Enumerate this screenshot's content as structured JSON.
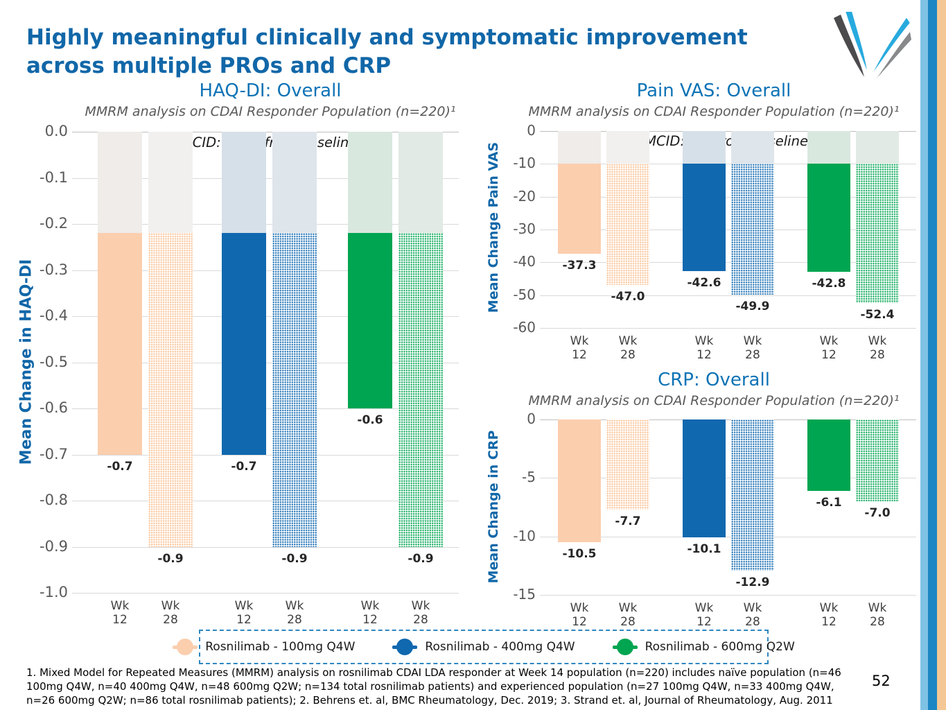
{
  "slide": {
    "title_line1": "Highly meaningful clinically and symptomatic improvement",
    "title_line2": "across multiple PROs and CRP",
    "page_number": "52",
    "footnote": "1. Mixed Model for Repeated Measures (MMRM) analysis on rosnilimab CDAI LDA responder at Week 14 population (n=220) includes naïve population (n=46 100mg Q4W, n=40 400mg Q4W, n=48 600mg Q2W; n=134 total rosnilimab patients) and experienced population (n=27 100mg Q4W, n=33 400mg Q4W, n=26 600mg Q2W; n=86 total rosnilimab patients); 2. Behrens et. al, BMC Rheumatology, Dec. 2019; 3. Strand et. al, Journal of Rheumatology, Aug. 2011",
    "accent_blue": "#1167a8",
    "stripe_colors": [
      "#7fc2e4",
      "#1b86c3",
      "#f4c795"
    ]
  },
  "dose_styles": {
    "100": {
      "solid": "#fbceae",
      "cap": "#efece9",
      "cap_pattern": "#f2f0ee",
      "pattern_class": "pat-100"
    },
    "400": {
      "solid": "#1068af",
      "cap": "#d6e0e9",
      "cap_pattern": "#dee5eb",
      "pattern_class": "pat-400"
    },
    "600": {
      "solid": "#00a551",
      "cap": "#d9e8df",
      "cap_pattern": "#e1eae4",
      "pattern_class": "pat-600"
    }
  },
  "legend": {
    "items": [
      {
        "label": "Rosnilimab - 100mg Q4W",
        "dose": "100"
      },
      {
        "label": "Rosnilimab - 400mg Q4W",
        "dose": "400"
      },
      {
        "label": "Rosnilimab - 600mg Q2W",
        "dose": "600"
      }
    ]
  },
  "chart_data": [
    {
      "id": "haqdi",
      "type": "bar",
      "title": "HAQ-DI: Overall",
      "subtitle": "MMRM analysis on CDAI Responder Population (n=220)¹",
      "annotation": "MCID: -0.22 from baseline²",
      "ylabel": "Mean Change in HAQ-DI",
      "ylim": [
        0,
        -1.0
      ],
      "mcid": -0.22,
      "grid": true,
      "ytick_labels": [
        "0.0",
        "-0.1",
        "-0.2",
        "-0.3",
        "-0.4",
        "-0.5",
        "-0.6",
        "-0.7",
        "-0.8",
        "-0.9",
        "-1.0"
      ],
      "ytick_values": [
        0,
        -0.1,
        -0.2,
        -0.3,
        -0.4,
        -0.5,
        -0.6,
        -0.7,
        -0.8,
        -0.9,
        -1.0
      ],
      "timepoints": [
        "Wk 12",
        "Wk 28"
      ],
      "series": [
        {
          "name": "Rosnilimab - 100mg Q4W",
          "dose": "100",
          "values": [
            -0.7,
            -0.9
          ],
          "labels": [
            "-0.7",
            "-0.9"
          ]
        },
        {
          "name": "Rosnilimab - 400mg Q4W",
          "dose": "400",
          "values": [
            -0.7,
            -0.9
          ],
          "labels": [
            "-0.7",
            "-0.9"
          ]
        },
        {
          "name": "Rosnilimab - 600mg Q2W",
          "dose": "600",
          "values": [
            -0.6,
            -0.9
          ],
          "labels": [
            "-0.6",
            "-0.9"
          ]
        }
      ]
    },
    {
      "id": "painvas",
      "type": "bar",
      "title": "Pain VAS: Overall",
      "subtitle": "MMRM analysis on CDAI Responder Population (n=220)¹",
      "annotation": "MCID: -10 from baseline³",
      "ylabel": "Mean Change Pain VAS",
      "ylim": [
        0,
        -60
      ],
      "mcid": -10,
      "grid": true,
      "ytick_labels": [
        "0",
        "-10",
        "-20",
        "-30",
        "-40",
        "-50",
        "-60"
      ],
      "ytick_values": [
        0,
        -10,
        -20,
        -30,
        -40,
        -50,
        -60
      ],
      "timepoints": [
        "Wk 12",
        "Wk 28"
      ],
      "series": [
        {
          "name": "Rosnilimab - 100mg Q4W",
          "dose": "100",
          "values": [
            -37.3,
            -47.0
          ],
          "labels": [
            "-37.3",
            "-47.0"
          ]
        },
        {
          "name": "Rosnilimab - 400mg Q4W",
          "dose": "400",
          "values": [
            -42.6,
            -49.9
          ],
          "labels": [
            "-42.6",
            "-49.9"
          ]
        },
        {
          "name": "Rosnilimab - 600mg Q2W",
          "dose": "600",
          "values": [
            -42.8,
            -52.4
          ],
          "labels": [
            "-42.8",
            "-52.4"
          ]
        }
      ]
    },
    {
      "id": "crp",
      "type": "bar",
      "title": "CRP: Overall",
      "subtitle": "MMRM analysis on CDAI Responder Population (n=220)¹",
      "annotation": null,
      "ylabel": "Mean Change in CRP",
      "ylim": [
        0,
        -15
      ],
      "mcid": null,
      "grid": true,
      "ytick_labels": [
        "0",
        "-5",
        "-10",
        "-15"
      ],
      "ytick_values": [
        0,
        -5,
        -10,
        -15
      ],
      "timepoints": [
        "Wk 12",
        "Wk 28"
      ],
      "series": [
        {
          "name": "Rosnilimab - 100mg Q4W",
          "dose": "100",
          "values": [
            -10.5,
            -7.7
          ],
          "labels": [
            "-10.5",
            "-7.7"
          ]
        },
        {
          "name": "Rosnilimab - 400mg Q4W",
          "dose": "400",
          "values": [
            -10.1,
            -12.9
          ],
          "labels": [
            "-10.1",
            "-12.9"
          ]
        },
        {
          "name": "Rosnilimab - 600mg Q2W",
          "dose": "600",
          "values": [
            -6.1,
            -7.0
          ],
          "labels": [
            "-6.1",
            "-7.0"
          ]
        }
      ]
    }
  ]
}
